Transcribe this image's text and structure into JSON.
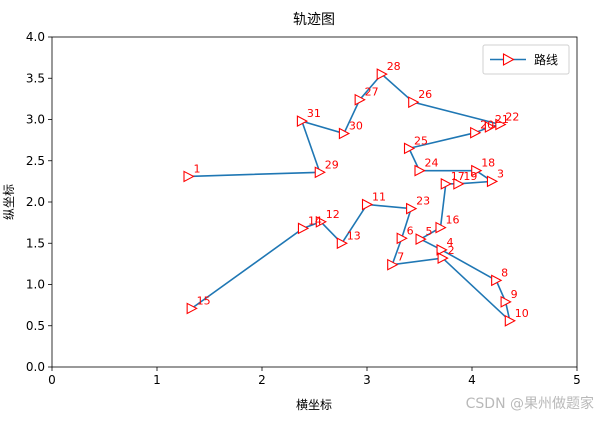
{
  "chart_data": {
    "type": "line",
    "title": "轨迹图",
    "xlabel": "横坐标",
    "ylabel": "纵坐标",
    "xlim": [
      0,
      5
    ],
    "ylim": [
      0.0,
      4.0
    ],
    "xticks": [
      "0",
      "1",
      "2",
      "3",
      "4",
      "5"
    ],
    "yticks": [
      "0.0",
      "0.5",
      "1.0",
      "1.5",
      "2.0",
      "2.5",
      "3.0",
      "3.5",
      "4.0"
    ],
    "grid": false,
    "legend_position": "top-right",
    "series": [
      {
        "name": "路线",
        "line_color": "#1f77b4",
        "marker_color": "#ff0000",
        "marker": "triangle-right",
        "points": [
          {
            "label": "1",
            "x": 1.3,
            "y": 2.31
          },
          {
            "label": "29",
            "x": 2.55,
            "y": 2.36
          },
          {
            "label": "31",
            "x": 2.38,
            "y": 2.98
          },
          {
            "label": "30",
            "x": 2.78,
            "y": 2.83
          },
          {
            "label": "27",
            "x": 2.93,
            "y": 3.24
          },
          {
            "label": "28",
            "x": 3.14,
            "y": 3.55
          },
          {
            "label": "26",
            "x": 3.44,
            "y": 3.21
          },
          {
            "label": "22",
            "x": 4.27,
            "y": 2.94
          },
          {
            "label": "21",
            "x": 4.17,
            "y": 2.91
          },
          {
            "label": "20",
            "x": 4.03,
            "y": 2.84
          },
          {
            "label": "25",
            "x": 3.4,
            "y": 2.65
          },
          {
            "label": "24",
            "x": 3.5,
            "y": 2.38
          },
          {
            "label": "18",
            "x": 4.04,
            "y": 2.38
          },
          {
            "label": "3",
            "x": 4.19,
            "y": 2.25
          },
          {
            "label": "19",
            "x": 3.87,
            "y": 2.22
          },
          {
            "label": "17",
            "x": 3.75,
            "y": 2.22
          },
          {
            "label": "16",
            "x": 3.7,
            "y": 1.69
          },
          {
            "label": "5",
            "x": 3.51,
            "y": 1.55
          },
          {
            "label": "4",
            "x": 3.71,
            "y": 1.42
          },
          {
            "label": "8",
            "x": 4.23,
            "y": 1.05
          },
          {
            "label": "9",
            "x": 4.32,
            "y": 0.79
          },
          {
            "label": "10",
            "x": 4.36,
            "y": 0.56
          },
          {
            "label": "2",
            "x": 3.72,
            "y": 1.32
          },
          {
            "label": "7",
            "x": 3.24,
            "y": 1.24
          },
          {
            "label": "6",
            "x": 3.33,
            "y": 1.56
          },
          {
            "label": "23",
            "x": 3.42,
            "y": 1.92
          },
          {
            "label": "11",
            "x": 3.0,
            "y": 1.97
          },
          {
            "label": "13",
            "x": 2.76,
            "y": 1.5
          },
          {
            "label": "12",
            "x": 2.56,
            "y": 1.76
          },
          {
            "label": "14",
            "x": 2.39,
            "y": 1.68
          },
          {
            "label": "15",
            "x": 1.33,
            "y": 0.71
          }
        ]
      }
    ]
  },
  "watermark": "CSDN @果州做题家"
}
